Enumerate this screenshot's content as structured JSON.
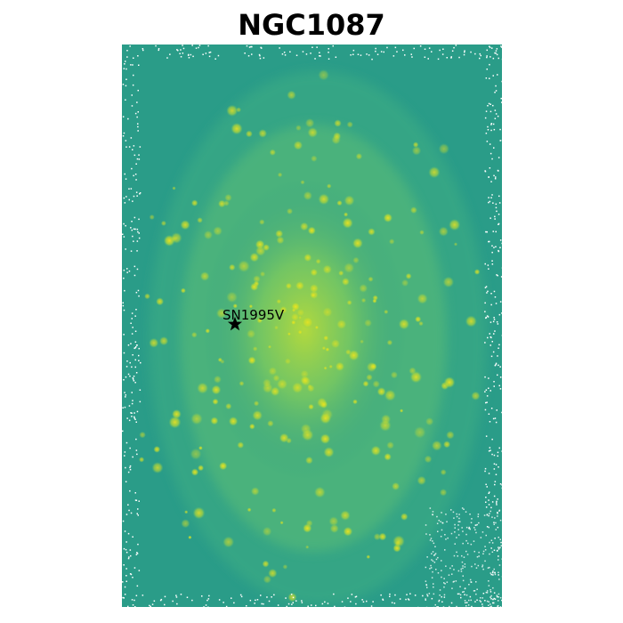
{
  "title": "NGC1087",
  "image": {
    "kind": "galaxy-heatmap",
    "colormap": "viridis",
    "colors": {
      "background": "#2a9c88",
      "mid": "#49b87a",
      "bright": "#c9df2a",
      "peak": "#f4e41e",
      "noise": "#ffffff"
    }
  },
  "annotation": {
    "label": "SN1995V",
    "marker": "star-icon"
  }
}
